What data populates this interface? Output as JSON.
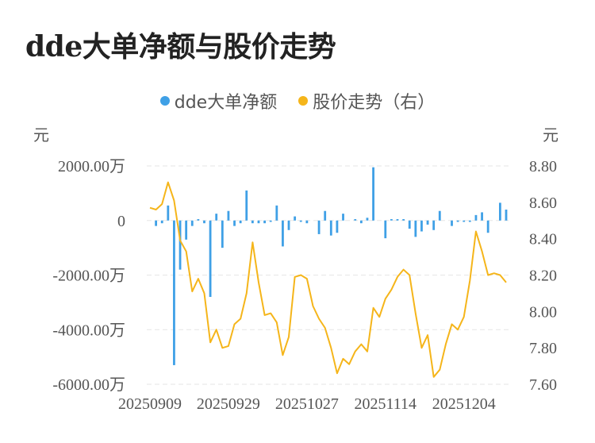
{
  "title": "dde大单净额与股价走势",
  "chart_data": {
    "type": "bar+line",
    "title": "dde大单净额与股价走势",
    "legend": [
      {
        "name": "dde大单净额",
        "color": "#3fa0e6"
      },
      {
        "name": "股价走势（右）",
        "color": "#f5b51a"
      }
    ],
    "left_axis": {
      "unit": "元",
      "ticks": [
        "2000.00万",
        "0",
        "-2000.00万",
        "-4000.00万",
        "-6000.00万"
      ],
      "range": [
        -6000,
        2000
      ]
    },
    "right_axis": {
      "unit": "元",
      "ticks": [
        "8.80",
        "8.60",
        "8.40",
        "8.20",
        "8.00",
        "7.80",
        "7.60"
      ],
      "range": [
        7.6,
        8.8
      ]
    },
    "x_ticks": [
      "20250909",
      "20250929",
      "20251027",
      "20251114",
      "20251204"
    ],
    "series": [
      {
        "name": "dde大单净额",
        "type": "bar",
        "values": [
          0,
          -200,
          -100,
          550,
          -5300,
          -1800,
          -700,
          -200,
          50,
          -100,
          -2800,
          250,
          -1000,
          350,
          -200,
          -100,
          1100,
          -100,
          -100,
          -100,
          -50,
          550,
          -950,
          -350,
          150,
          -50,
          -100,
          0,
          -500,
          350,
          -550,
          -450,
          250,
          0,
          50,
          -100,
          100,
          1950,
          0,
          -650,
          50,
          50,
          50,
          -300,
          -600,
          -400,
          -150,
          -350,
          350,
          0,
          -200,
          -50,
          -50,
          -50,
          200,
          300,
          -450,
          0,
          650,
          400
        ]
      },
      {
        "name": "股价走势（右）",
        "type": "line",
        "values": [
          8.57,
          8.56,
          8.59,
          8.71,
          8.61,
          8.39,
          8.33,
          8.11,
          8.18,
          8.1,
          7.83,
          7.9,
          7.8,
          7.81,
          7.93,
          7.96,
          8.1,
          8.38,
          8.16,
          7.98,
          7.99,
          7.94,
          7.76,
          7.86,
          8.19,
          8.2,
          8.18,
          8.03,
          7.96,
          7.91,
          7.8,
          7.66,
          7.74,
          7.71,
          7.78,
          7.82,
          7.78,
          8.02,
          7.97,
          8.07,
          8.12,
          8.19,
          8.23,
          8.2,
          7.99,
          7.8,
          7.87,
          7.64,
          7.68,
          7.82,
          7.93,
          7.9,
          7.97,
          8.17,
          8.44,
          8.33,
          8.2,
          8.21,
          8.2,
          8.16
        ]
      }
    ]
  }
}
